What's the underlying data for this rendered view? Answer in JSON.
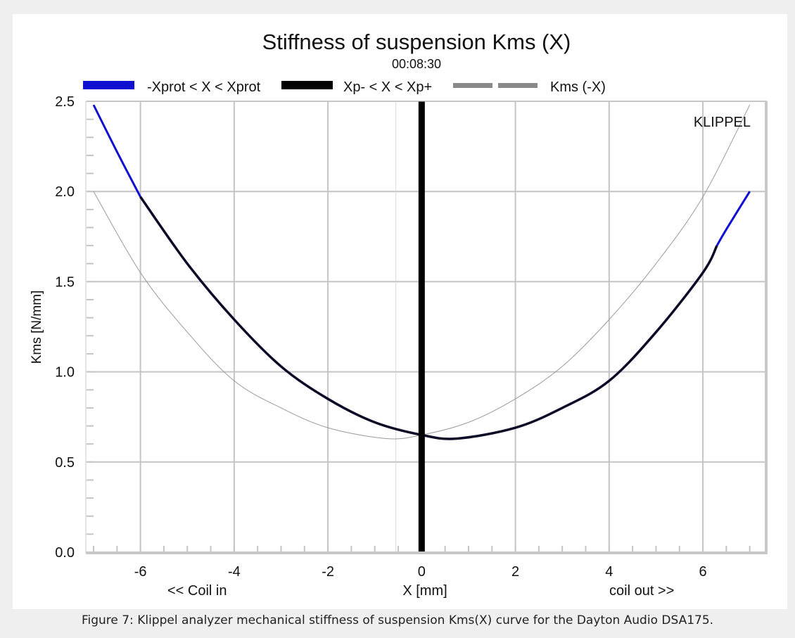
{
  "chart_data": {
    "type": "line",
    "title": "Stiffness of suspension Kms (X)",
    "subtitle": "00:08:30",
    "xlabel": "X [mm]",
    "ylabel": "Kms [N/mm]",
    "xlim": [
      -7.15,
      7.35
    ],
    "ylim": [
      0.0,
      2.5
    ],
    "x_ticks": [
      -6,
      -4,
      -2,
      0,
      2,
      4,
      6
    ],
    "x_tick_labels": [
      "-6",
      "-4",
      "-2",
      "0",
      "2",
      "4",
      "6"
    ],
    "y_ticks": [
      0.0,
      0.5,
      1.0,
      1.5,
      2.0,
      2.5
    ],
    "y_tick_labels": [
      "0.0",
      "0.5",
      "1.0",
      "1.5",
      "2.0",
      "2.5"
    ],
    "grid": true,
    "legend_position": "top",
    "annotations": {
      "brand": "KLIPPEL",
      "coil_in": "<< Coil in",
      "coil_out": "coil out >>"
    },
    "markers": [
      {
        "name": "Xmax marker",
        "x": 0.0
      },
      {
        "name": "offset marker",
        "x": -0.55
      }
    ],
    "series": [
      {
        "name": "-Xprot < X < Xprot",
        "color": "#1010d0",
        "x": [
          -7.0,
          -6.5,
          -6.0,
          6.3,
          6.5,
          7.0
        ],
        "y": [
          2.48,
          2.22,
          1.97,
          1.7,
          1.79,
          2.0
        ]
      },
      {
        "name": "Xp- < X < Xp+",
        "color": "#000000",
        "x": [
          -6.0,
          -5.0,
          -4.0,
          -3.0,
          -2.0,
          -1.0,
          0.0,
          0.75,
          2.0,
          3.0,
          4.0,
          5.0,
          6.0,
          6.3
        ],
        "y": [
          1.97,
          1.6,
          1.29,
          1.03,
          0.85,
          0.72,
          0.65,
          0.63,
          0.69,
          0.8,
          0.95,
          1.22,
          1.55,
          1.7
        ]
      },
      {
        "name": "Kms (-X)",
        "color": "#888888",
        "x": [
          -7.0,
          -6.0,
          -5.0,
          -4.0,
          -3.0,
          -2.0,
          -0.75,
          0.0,
          1.0,
          2.0,
          3.0,
          4.0,
          5.0,
          6.0,
          7.0
        ],
        "y": [
          2.0,
          1.55,
          1.22,
          0.95,
          0.8,
          0.69,
          0.63,
          0.65,
          0.72,
          0.85,
          1.03,
          1.29,
          1.6,
          1.97,
          2.48
        ]
      }
    ]
  },
  "caption": "Figure 7: Klippel analyzer mechanical stiffness of suspension Kms(X) curve for the Dayton Audio DSA175."
}
